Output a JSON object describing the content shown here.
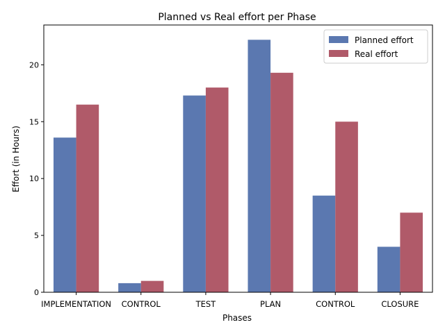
{
  "chart_data": {
    "type": "bar",
    "title": "Planned vs Real effort per Phase",
    "xlabel": "Phases",
    "ylabel": "Effort (in Hours)",
    "categories": [
      "IMPLEMENTATION",
      "CONTROL",
      "TEST",
      "PLAN",
      "CONTROL",
      "CLOSURE"
    ],
    "series": [
      {
        "name": "Planned effort",
        "color": "#5b78b0",
        "values": [
          13.6,
          0.8,
          17.3,
          22.2,
          8.5,
          4.0
        ]
      },
      {
        "name": "Real effort",
        "color": "#b05a69",
        "values": [
          16.5,
          1.0,
          18.0,
          19.3,
          15.0,
          7.0
        ]
      }
    ],
    "ylim": [
      0,
      23.5
    ],
    "yticks": [
      0,
      5,
      10,
      15,
      20
    ],
    "grid": false,
    "legend": "top-right"
  }
}
